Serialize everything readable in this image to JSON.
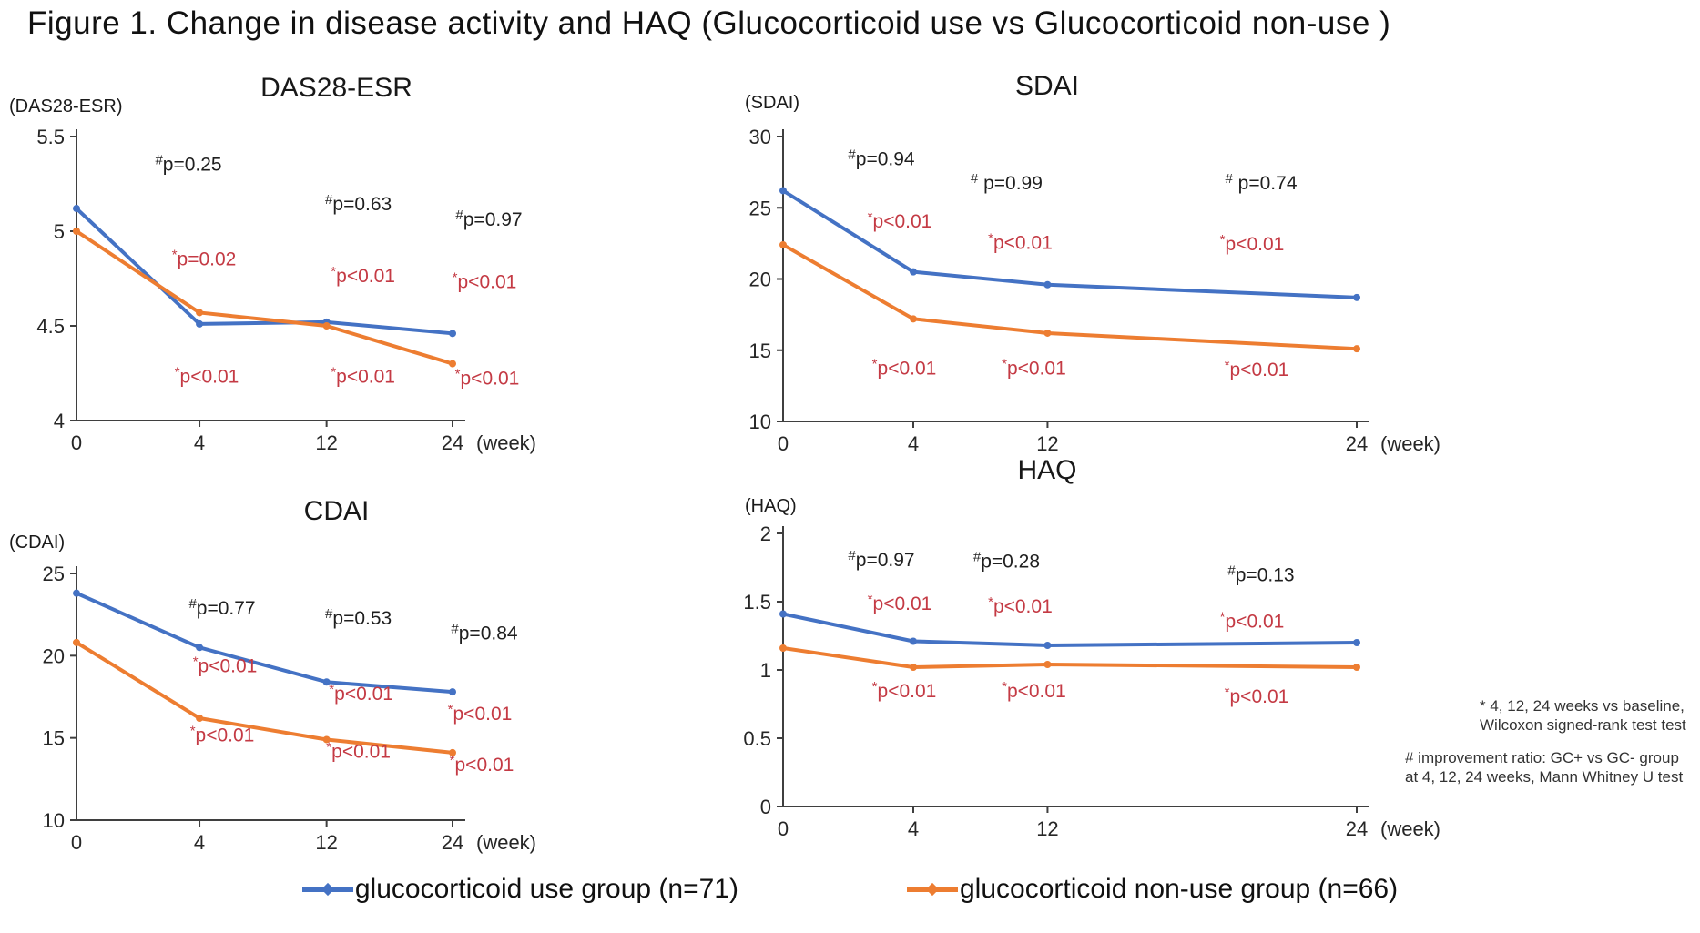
{
  "title": "Figure 1. Change in disease activity and HAQ (Glucocorticoid use vs Glucocorticoid non-use )",
  "colors": {
    "blue": "#4472C4",
    "orange": "#ED7D31",
    "red": "#C43A44",
    "black": "#1f1f1f",
    "axis": "#3f3f3f"
  },
  "legend": [
    {
      "label": "glucocorticoid use group (n=71)",
      "color": "#4472C4"
    },
    {
      "label": "glucocorticoid non-use group (n=66)",
      "color": "#ED7D31"
    }
  ],
  "footnotes": [
    {
      "lines": [
        "* 4, 12, 24 weeks vs baseline,",
        "Wilcoxon signed-rank test test"
      ]
    },
    {
      "lines": [
        "# improvement ratio: GC+ vs GC- group",
        "at 4, 12, 24 weeks, Mann Whitney U test"
      ]
    }
  ],
  "chart_data": [
    {
      "type": "line",
      "title": "DAS28-ESR",
      "unit": "(DAS28-ESR)",
      "x": [
        "0",
        "4",
        "12",
        "24"
      ],
      "xlabel": "(week)",
      "ylim": [
        4,
        5.5
      ],
      "yticks": [
        5.5,
        5,
        4.5,
        4
      ],
      "series": [
        {
          "name": "glucocorticoid use group (n=71)",
          "values": [
            5.12,
            4.51,
            4.52,
            4.46
          ]
        },
        {
          "name": "glucocorticoid non-use group (n=66)",
          "values": [
            5.0,
            4.57,
            4.5,
            4.3
          ]
        }
      ],
      "annotations": {
        "black": [
          {
            "xi": 1,
            "y": 5.32,
            "dx": -12,
            "marker": "#",
            "text": "p=0.25"
          },
          {
            "xi": 2,
            "y": 5.11,
            "dx": 35,
            "marker": "#",
            "text": "p=0.63"
          },
          {
            "xi": 3,
            "y": 5.03,
            "dx": 40,
            "marker": "#",
            "text": "p=0.97"
          }
        ],
        "red_upper": [
          {
            "xi": 1,
            "y": 4.82,
            "dx": 5,
            "marker": "*",
            "text": "p=0.02"
          },
          {
            "xi": 2,
            "y": 4.73,
            "dx": 40,
            "marker": "*",
            "text": "p<0.01"
          },
          {
            "xi": 3,
            "y": 4.7,
            "dx": 35,
            "marker": "*",
            "text": "p<0.01"
          }
        ],
        "red_lower": [
          {
            "xi": 1,
            "y": 4.2,
            "dx": 8,
            "marker": "*",
            "text": "p<0.01"
          },
          {
            "xi": 2,
            "y": 4.2,
            "dx": 40,
            "marker": "*",
            "text": "p<0.01"
          },
          {
            "xi": 3,
            "y": 4.19,
            "dx": 38,
            "marker": "*",
            "text": "p<0.01"
          }
        ]
      }
    },
    {
      "type": "line",
      "title": "SDAI",
      "unit": "(SDAI)",
      "x": [
        "0",
        "4",
        "12",
        "24"
      ],
      "xlabel": "(week)",
      "ylim": [
        10,
        30
      ],
      "yticks": [
        30,
        25,
        20,
        15,
        10
      ],
      "series": [
        {
          "name": "glucocorticoid use group (n=71)",
          "values": [
            26.2,
            20.5,
            19.6,
            18.7
          ]
        },
        {
          "name": "glucocorticoid non-use group (n=66)",
          "values": [
            22.4,
            17.2,
            16.2,
            15.1
          ]
        }
      ],
      "annotations": {
        "black": [
          {
            "xi": 1,
            "y": 28.0,
            "dx": -35,
            "marker": "#",
            "text": "p=0.94"
          },
          {
            "xi": 2,
            "y": 26.3,
            "dx": -45,
            "marker": "#",
            "text": " p=0.99"
          },
          {
            "xi": 3,
            "y": 26.3,
            "dx": -105,
            "marker": "#",
            "text": " p=0.74"
          }
        ],
        "red_upper": [
          {
            "xi": 1,
            "y": 23.6,
            "dx": -15,
            "marker": "*",
            "text": "p<0.01"
          },
          {
            "xi": 2,
            "y": 22.1,
            "dx": -30,
            "marker": "*",
            "text": "p<0.01"
          },
          {
            "xi": 3,
            "y": 22.0,
            "dx": -115,
            "marker": "*",
            "text": "p<0.01"
          }
        ],
        "red_lower": [
          {
            "xi": 1,
            "y": 13.3,
            "dx": -10,
            "marker": "*",
            "text": "p<0.01"
          },
          {
            "xi": 2,
            "y": 13.3,
            "dx": -15,
            "marker": "*",
            "text": "p<0.01"
          },
          {
            "xi": 3,
            "y": 13.2,
            "dx": -110,
            "marker": "*",
            "text": "p<0.01"
          }
        ]
      }
    },
    {
      "type": "line",
      "title": "CDAI",
      "unit": "(CDAI)",
      "x": [
        "0",
        "4",
        "12",
        "24"
      ],
      "xlabel": "(week)",
      "ylim": [
        10,
        25
      ],
      "yticks": [
        25,
        20,
        15,
        10
      ],
      "series": [
        {
          "name": "glucocorticoid use group (n=71)",
          "values": [
            23.8,
            20.5,
            18.4,
            17.8
          ]
        },
        {
          "name": "glucocorticoid non-use group (n=66)",
          "values": [
            20.8,
            16.2,
            14.9,
            14.1
          ]
        }
      ],
      "annotations": {
        "black": [
          {
            "xi": 1,
            "y": 22.5,
            "dx": 25,
            "marker": "#",
            "text": "p=0.77"
          },
          {
            "xi": 2,
            "y": 21.9,
            "dx": 35,
            "marker": "#",
            "text": "p=0.53"
          },
          {
            "xi": 3,
            "y": 21.0,
            "dx": 35,
            "marker": "#",
            "text": "p=0.84"
          }
        ],
        "red_upper": [
          {
            "xi": 1,
            "y": 19.0,
            "dx": 28,
            "marker": "*",
            "text": "p<0.01"
          },
          {
            "xi": 2,
            "y": 17.3,
            "dx": 38,
            "marker": "*",
            "text": "p<0.01"
          },
          {
            "xi": 3,
            "y": 16.1,
            "dx": 30,
            "marker": "*",
            "text": "p<0.01"
          }
        ],
        "red_lower": [
          {
            "xi": 1,
            "y": 14.8,
            "dx": 25,
            "marker": "*",
            "text": "p<0.01"
          },
          {
            "xi": 2,
            "y": 13.8,
            "dx": 35,
            "marker": "*",
            "text": "p<0.01"
          },
          {
            "xi": 3,
            "y": 13.0,
            "dx": 32,
            "marker": "*",
            "text": "p<0.01"
          }
        ]
      }
    },
    {
      "type": "line",
      "title": "HAQ",
      "unit": "(HAQ)",
      "x": [
        "0",
        "4",
        "12",
        "24"
      ],
      "xlabel": "(week)",
      "ylim": [
        0,
        2
      ],
      "yticks": [
        2,
        1.5,
        1,
        0.5,
        0
      ],
      "series": [
        {
          "name": "glucocorticoid use group (n=71)",
          "values": [
            1.41,
            1.21,
            1.18,
            1.2
          ]
        },
        {
          "name": "glucocorticoid non-use group (n=66)",
          "values": [
            1.16,
            1.02,
            1.04,
            1.02
          ]
        }
      ],
      "annotations": {
        "black": [
          {
            "xi": 1,
            "y": 1.76,
            "dx": -35,
            "marker": "#",
            "text": "p=0.97"
          },
          {
            "xi": 2,
            "y": 1.75,
            "dx": -45,
            "marker": "#",
            "text": "p=0.28"
          },
          {
            "xi": 3,
            "y": 1.65,
            "dx": -105,
            "marker": "#",
            "text": "p=0.13"
          }
        ],
        "red_upper": [
          {
            "xi": 1,
            "y": 1.44,
            "dx": -15,
            "marker": "*",
            "text": "p<0.01"
          },
          {
            "xi": 2,
            "y": 1.42,
            "dx": -30,
            "marker": "*",
            "text": "p<0.01"
          },
          {
            "xi": 3,
            "y": 1.31,
            "dx": -115,
            "marker": "*",
            "text": "p<0.01"
          }
        ],
        "red_lower": [
          {
            "xi": 1,
            "y": 0.8,
            "dx": -10,
            "marker": "*",
            "text": "p<0.01"
          },
          {
            "xi": 2,
            "y": 0.8,
            "dx": -15,
            "marker": "*",
            "text": "p<0.01"
          },
          {
            "xi": 3,
            "y": 0.76,
            "dx": -110,
            "marker": "*",
            "text": "p<0.01"
          }
        ]
      }
    }
  ]
}
